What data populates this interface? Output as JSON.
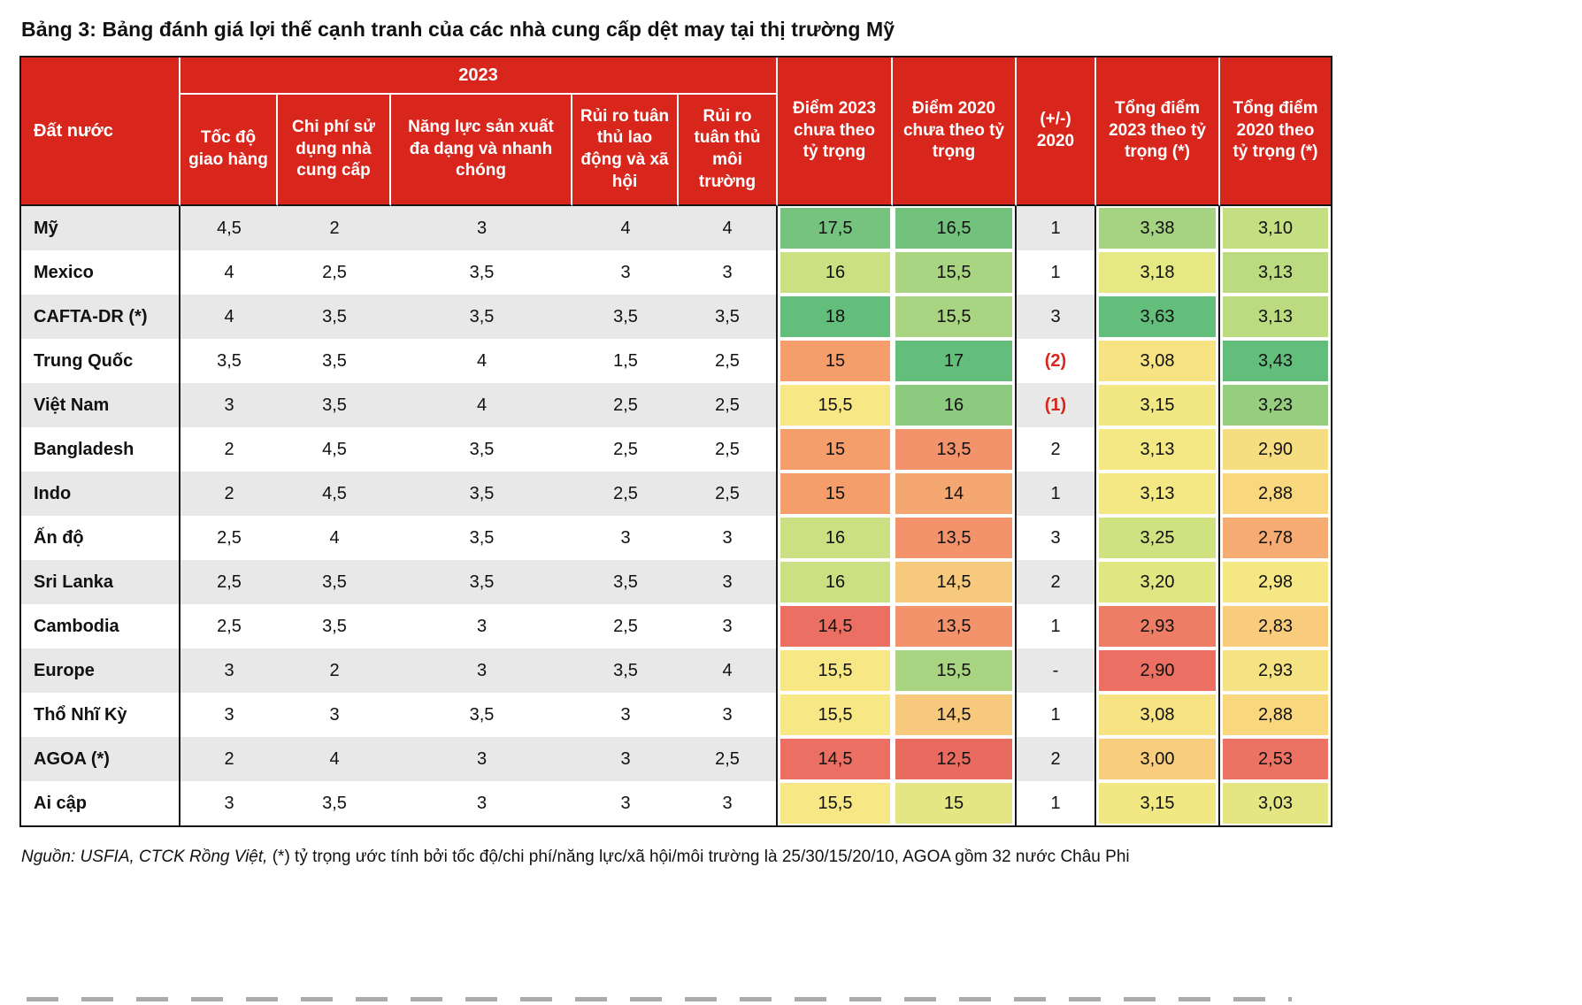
{
  "title": "Bảng 3: Bảng đánh giá lợi thế cạnh tranh của các nhà cung cấp dệt may tại thị trường Mỹ",
  "footer": {
    "source": "Nguồn: USFIA, CTCK Rồng Việt,",
    "note": "(*) tỷ trọng ước tính bởi tốc độ/chi phí/năng lực/xã hội/môi trường là 25/30/15/20/10, AGOA  gồm 32 nước Châu Phi"
  },
  "colors": {
    "header_bg": "#d9261c",
    "row_stripe": "#e8e8e8",
    "table_border": "#161616",
    "negative_delta_text": "#d9261c",
    "heat_green": "#63be7b",
    "heat_yellow": "#f7e785",
    "heat_red": "#eb6f62"
  },
  "chart_data": {
    "type": "table",
    "title": "Bảng 3: Bảng đánh giá lợi thế cạnh tranh của các nhà cung cấp dệt may tại thị trường Mỹ",
    "group_header": "2023",
    "columns": [
      "Đất nước",
      "Tốc độ giao hàng",
      "Chi phí sử dụng nhà cung cấp",
      "Năng lực sản xuất đa dạng và nhanh chóng",
      "Rủi ro tuân thủ lao động và xã hội",
      "Rủi ro tuân thủ môi trường",
      "Điểm 2023 chưa theo tỷ trọng",
      "Điểm 2020 chưa theo tỷ trọng",
      "(+/-) 2020",
      "Tổng điểm 2023 theo tỷ trọng (*)",
      "Tổng điểm 2020 theo tỷ trọng (*)"
    ],
    "rows": [
      [
        "Mỹ",
        "4,5",
        "2",
        "3",
        "4",
        "4",
        "17,5",
        "16,5",
        "1",
        "3,38",
        "3,10"
      ],
      [
        "Mexico",
        "4",
        "2,5",
        "3,5",
        "3",
        "3",
        "16",
        "15,5",
        "1",
        "3,18",
        "3,13"
      ],
      [
        "CAFTA-DR (*)",
        "4",
        "3,5",
        "3,5",
        "3,5",
        "3,5",
        "18",
        "15,5",
        "3",
        "3,63",
        "3,13"
      ],
      [
        "Trung Quốc",
        "3,5",
        "3,5",
        "4",
        "1,5",
        "2,5",
        "15",
        "17",
        "(2)",
        "3,08",
        "3,43"
      ],
      [
        "Việt Nam",
        "3",
        "3,5",
        "4",
        "2,5",
        "2,5",
        "15,5",
        "16",
        "(1)",
        "3,15",
        "3,23"
      ],
      [
        "Bangladesh",
        "2",
        "4,5",
        "3,5",
        "2,5",
        "2,5",
        "15",
        "13,5",
        "2",
        "3,13",
        "2,90"
      ],
      [
        "Indo",
        "2",
        "4,5",
        "3,5",
        "2,5",
        "2,5",
        "15",
        "14",
        "1",
        "3,13",
        "2,88"
      ],
      [
        "Ấn độ",
        "2,5",
        "4",
        "3,5",
        "3",
        "3",
        "16",
        "13,5",
        "3",
        "3,25",
        "2,78"
      ],
      [
        "Sri Lanka",
        "2,5",
        "3,5",
        "3,5",
        "3,5",
        "3",
        "16",
        "14,5",
        "2",
        "3,20",
        "2,98"
      ],
      [
        "Cambodia",
        "2,5",
        "3,5",
        "3",
        "2,5",
        "3",
        "14,5",
        "13,5",
        "1",
        "2,93",
        "2,83"
      ],
      [
        "Europe",
        "3",
        "2",
        "3",
        "3,5",
        "4",
        "15,5",
        "15,5",
        "-",
        "2,90",
        "2,93"
      ],
      [
        "Thổ Nhĩ Kỳ",
        "3",
        "3",
        "3,5",
        "3",
        "3",
        "15,5",
        "14,5",
        "1",
        "3,08",
        "2,88"
      ],
      [
        "AGOA (*)",
        "2",
        "4",
        "3",
        "3",
        "2,5",
        "14,5",
        "12,5",
        "2",
        "3,00",
        "2,53"
      ],
      [
        "Ai cập",
        "3",
        "3,5",
        "3",
        "3",
        "3",
        "15,5",
        "15",
        "1",
        "3,15",
        "3,03"
      ]
    ],
    "heat_colors": {
      "6": [
        "#76c27f",
        "#cbe083",
        "#63be7b",
        "#f59e6c",
        "#f7e785",
        "#f59e6c",
        "#f59e6c",
        "#cbe083",
        "#cbe083",
        "#eb6f62",
        "#f7e785",
        "#f7e785",
        "#eb6f62",
        "#f7e785"
      ],
      "7": [
        "#72c17d",
        "#a9d481",
        "#a9d481",
        "#63be7b",
        "#8bca7f",
        "#f2936b",
        "#f4a770",
        "#f2936b",
        "#f7c97c",
        "#f2936b",
        "#a9d481",
        "#f7c97c",
        "#e96a5f",
        "#e4e683"
      ],
      "9": [
        "#a6d381",
        "#e6e884",
        "#63be7b",
        "#f7e384",
        "#f1e884",
        "#f3e884",
        "#f3e884",
        "#d0e182",
        "#e0e681",
        "#ee7d66",
        "#eb6f62",
        "#f7e384",
        "#f8cd7d",
        "#f1e884"
      ],
      "10": [
        "#c4de82",
        "#bcdb81",
        "#bcdb81",
        "#63be7b",
        "#97cd7e",
        "#f7dd81",
        "#f8d77f",
        "#f5ab71",
        "#f5e884",
        "#f8cc7c",
        "#f5e283",
        "#f8d77f",
        "#ec7263",
        "#e3e682"
      ]
    }
  }
}
